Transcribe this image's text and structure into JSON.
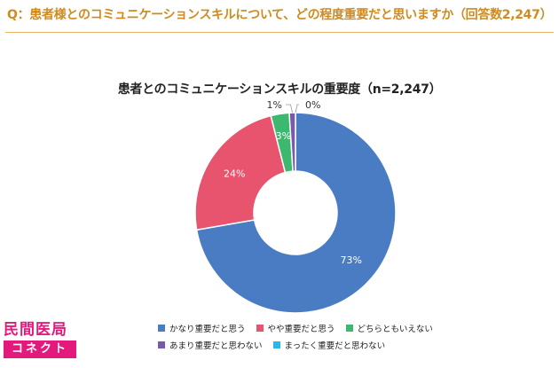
{
  "question": "Q：患者様とのコミュニケーションスキルについて、どの程度重要だと思いますか（回答数2,247）",
  "chart_data": {
    "type": "pie",
    "title": "患者とのコミュニケーションスキルの重要度（n=2,247）",
    "categories": [
      "かなり重要だと思う",
      "やや重要だと思う",
      "どちらともいえない",
      "あまり重要だと思わない",
      "まったく重要だと思わない"
    ],
    "values": [
      73,
      24,
      3,
      1,
      0
    ],
    "value_labels": [
      "73%",
      "24%",
      "3%",
      "1%",
      "0%"
    ],
    "colors": [
      "#4a7cc4",
      "#e8536e",
      "#3db86f",
      "#7a5aa8",
      "#29b6e8"
    ],
    "donut": true,
    "legend_position": "bottom"
  },
  "logo": {
    "top": "民間医局",
    "bottom": "コネクト"
  }
}
